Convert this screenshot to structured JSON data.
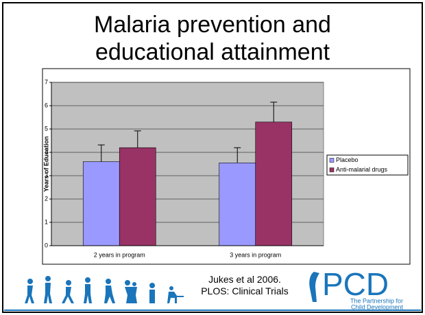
{
  "chart_data": {
    "type": "bar",
    "title": "Malaria prevention and educational attainment",
    "y_label": "Years of Education",
    "categories": [
      "2 years in program",
      "3 years in program"
    ],
    "series": [
      {
        "name": "Placebo",
        "color": "#9999ff",
        "values": [
          3.6,
          3.55
        ],
        "errors": [
          0.72,
          0.65
        ]
      },
      {
        "name": "Anti-malarial drugs",
        "color": "#993366",
        "values": [
          4.2,
          5.3
        ],
        "errors": [
          0.72,
          0.85
        ]
      }
    ],
    "ylim": [
      0,
      7
    ],
    "yticks": [
      0,
      1,
      2,
      3,
      4,
      5,
      6,
      7
    ],
    "grid": true,
    "plot_background": "#c0c0c0",
    "legend": "right"
  },
  "footer": {
    "citation": "Jukes et al 2006. PLOS: Clinical Trials",
    "logo": {
      "name": "PCD",
      "tagline": [
        "The Partnership for",
        "Child Development"
      ]
    }
  }
}
